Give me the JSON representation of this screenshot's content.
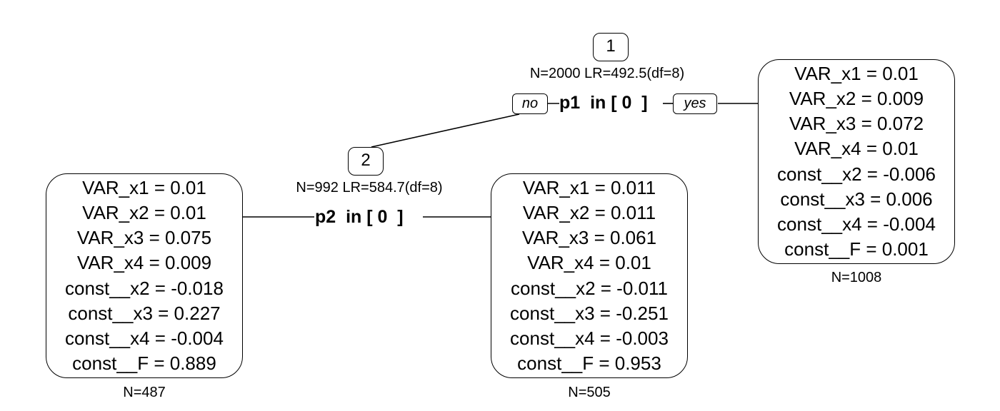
{
  "nodes": [
    {
      "id": "1",
      "stats": "N=2000 LR=492.5(df=8)",
      "split": "p1  in [ 0  ]",
      "left_label": "no",
      "right_label": "yes"
    },
    {
      "id": "2",
      "stats": "N=992 LR=584.7(df=8)",
      "split": "p2  in [ 0  ]"
    }
  ],
  "leaves": [
    {
      "n": "N=487",
      "lines": [
        "VAR_x1 = 0.01",
        "VAR_x2 = 0.01",
        "VAR_x3 = 0.075",
        "VAR_x4 = 0.009",
        "const__x2 = -0.018",
        "const__x3 = 0.227",
        "const__x4 = -0.004",
        "const__F = 0.889"
      ]
    },
    {
      "n": "N=505",
      "lines": [
        "VAR_x1 = 0.011",
        "VAR_x2 = 0.011",
        "VAR_x3 = 0.061",
        "VAR_x4 = 0.01",
        "const__x2 = -0.011",
        "const__x3 = -0.251",
        "const__x4 = -0.003",
        "const__F = 0.953"
      ]
    },
    {
      "n": "N=1008",
      "lines": [
        "VAR_x1 = 0.01",
        "VAR_x2 = 0.009",
        "VAR_x3 = 0.072",
        "VAR_x4 = 0.01",
        "const__x2 = -0.006",
        "const__x3 = 0.006",
        "const__x4 = -0.004",
        "const__F = 0.001"
      ]
    }
  ]
}
